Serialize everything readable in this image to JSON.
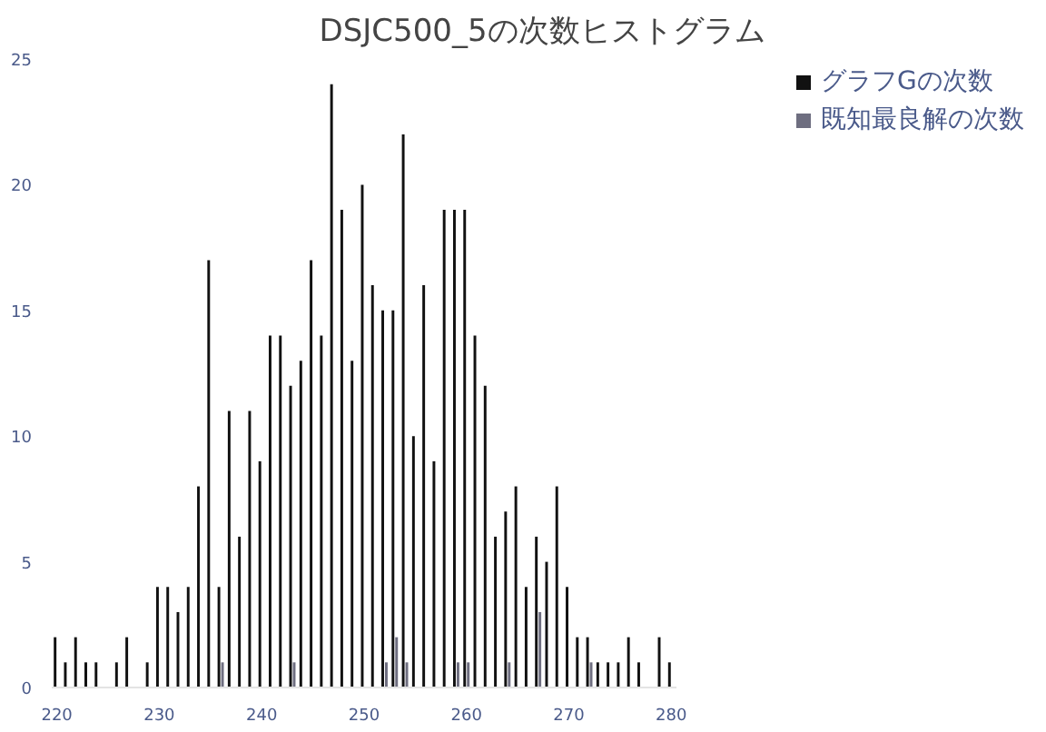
{
  "chart_data": {
    "type": "histogram",
    "title": "DSJC500_5の次数ヒストグラム",
    "bins": [
      219.5,
      220.5,
      221.5,
      222.5,
      223.5,
      224.5,
      225.5,
      226.5,
      227.5,
      228.5,
      229.5,
      230.5,
      231.5,
      232.5,
      233.5,
      234.5,
      235.5,
      236.5,
      237.5,
      238.5,
      239.5,
      240.5,
      241.5,
      242.5,
      243.5,
      244.5,
      245.5,
      246.5,
      247.5,
      248.5,
      249.5,
      250.5,
      251.5,
      252.5,
      253.5,
      254.5,
      255.5,
      256.5,
      257.5,
      258.5,
      259.5,
      260.5,
      261.5,
      262.5,
      263.5,
      264.5,
      265.5,
      266.5,
      267.5,
      268.5,
      269.5,
      270.5,
      271.5,
      272.5,
      273.5,
      274.5,
      275.5,
      276.5,
      277.5,
      278.5,
      279.5,
      280.5
    ],
    "series": [
      {
        "name": "グラフGの次数",
        "color": "#111111",
        "values": [
          2,
          1,
          2,
          1,
          1,
          0,
          1,
          2,
          0,
          1,
          4,
          4,
          3,
          4,
          8,
          17,
          4,
          11,
          6,
          11,
          9,
          14,
          14,
          12,
          13,
          17,
          14,
          24,
          19,
          13,
          20,
          16,
          15,
          15,
          22,
          10,
          16,
          9,
          19,
          19,
          19,
          14,
          12,
          6,
          7,
          8,
          4,
          6,
          5,
          8,
          4,
          2,
          2,
          1,
          1,
          1,
          2,
          1,
          0,
          2,
          1
        ]
      },
      {
        "name": "既知最良解の次数",
        "color": "#6e6e80",
        "values": [
          0,
          0,
          0,
          0,
          0,
          0,
          0,
          0,
          0,
          0,
          0,
          0,
          0,
          0,
          0,
          0,
          1,
          0,
          0,
          0,
          0,
          0,
          0,
          1,
          0,
          0,
          0,
          0,
          0,
          0,
          0,
          0,
          1,
          2,
          1,
          0,
          0,
          0,
          0,
          1,
          1,
          0,
          0,
          0,
          1,
          0,
          0,
          3,
          0,
          0,
          0,
          0,
          1,
          0,
          0,
          0,
          0,
          0,
          0,
          0,
          0
        ]
      }
    ],
    "xlim": [
      219.5,
      280.5
    ],
    "xticks": [
      220,
      230,
      240,
      250,
      260,
      270,
      280
    ],
    "ylim": [
      0,
      25
    ],
    "yticks": [
      0,
      5,
      10,
      15,
      20,
      25
    ],
    "grid": false,
    "legend": "top right"
  }
}
